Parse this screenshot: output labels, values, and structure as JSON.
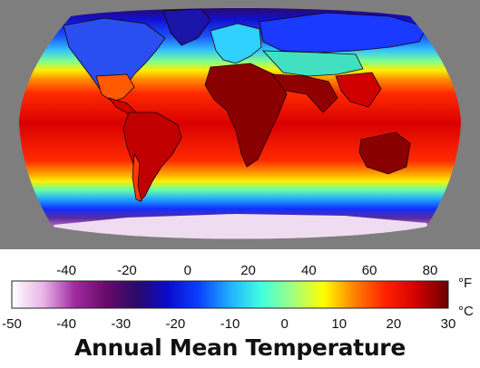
{
  "title": "Annual Mean Temperature",
  "colorbar": {
    "fahrenheit_unit": "°F",
    "celsius_unit": "°C",
    "fahrenheit_ticks": [
      -40,
      -20,
      0,
      20,
      40,
      60,
      80
    ],
    "celsius_ticks": [
      -50,
      -40,
      -30,
      -20,
      -10,
      0,
      10,
      20,
      30
    ],
    "range_c": [
      -50,
      30
    ],
    "colors": [
      "#ffffff",
      "#e8b6e8",
      "#a02ca0",
      "#6a0a6a",
      "#2a0a6a",
      "#0a0acc",
      "#0a40ff",
      "#20b0ff",
      "#40ffe0",
      "#a0ff80",
      "#ffff00",
      "#ff8000",
      "#ff2000",
      "#d00000",
      "#6a0000"
    ]
  },
  "map": {
    "projection": "robinson",
    "background_color": "#7e7e7e"
  }
}
